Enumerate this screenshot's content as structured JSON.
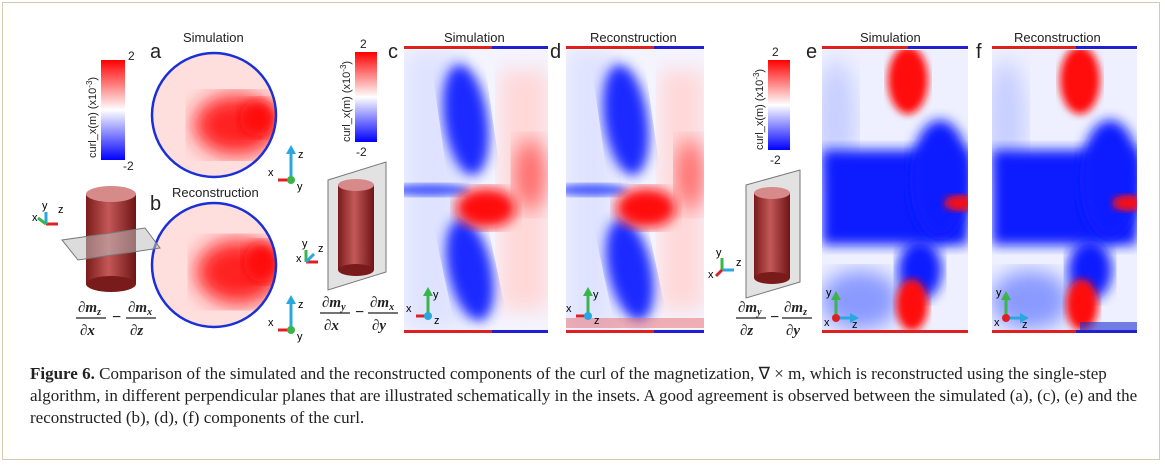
{
  "figure": {
    "panel_letters": [
      "a",
      "b",
      "c",
      "d",
      "e",
      "f"
    ],
    "simulation_label": "Simulation",
    "reconstruction_label": "Reconstruction",
    "colorbar": {
      "label_main": "curl_x(m) (x10",
      "label_exp": "-3",
      "label_close": ")",
      "max": "2",
      "min": "-2",
      "colors": {
        "positive": "#ff0000",
        "zero": "#ffffff",
        "negative": "#0000ff"
      }
    },
    "axes_letters": {
      "x": "x",
      "y": "y",
      "z": "z"
    },
    "axis_colors": {
      "x": "#e02020",
      "y": "#3ab54a",
      "z": "#29a8e0"
    },
    "formulas": {
      "ab": {
        "n1": "∂m",
        "s1": "z",
        "d1": "∂x",
        "n2": "∂m",
        "s2": "x",
        "d2": "∂z"
      },
      "cd": {
        "n1": "∂m",
        "s1": "y",
        "d1": "∂x",
        "n2": "∂m",
        "s2": "x",
        "d2": "∂y"
      },
      "ef": {
        "n1": "∂m",
        "s1": "y",
        "d1": "∂z",
        "n2": "∂m",
        "s2": "z",
        "d2": "∂y"
      }
    }
  },
  "caption": {
    "label": "Figure 6.",
    "text": " Comparison of the simulated and the reconstructed components of the curl of the magnetization, ∇ × m, which is reconstructed using the single-step algorithm, in different perpendicular planes that are illustrated schematically in the insets. A good agreement is observed between the simulated (a), (c), (e) and the reconstructed (b), (d), (f) components of the curl."
  }
}
